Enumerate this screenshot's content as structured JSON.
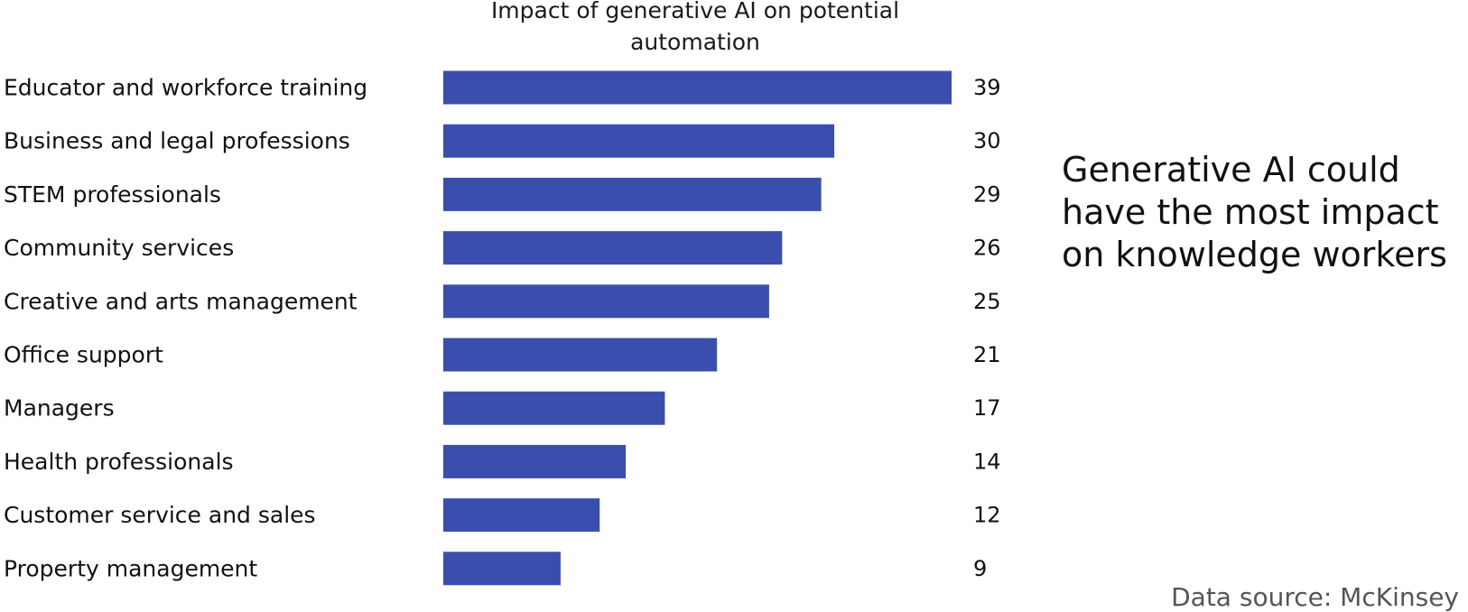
{
  "chart_data": {
    "type": "bar",
    "orientation": "horizontal",
    "title": "Impact of generative AI on potential automation",
    "categories": [
      "Educator and workforce training",
      "Business and legal professions",
      "STEM professionals",
      "Community services",
      "Creative and arts management",
      "Office support",
      "Managers",
      "Health professionals",
      "Customer service and sales",
      "Property management"
    ],
    "values": [
      39,
      30,
      29,
      26,
      25,
      21,
      17,
      14,
      12,
      9
    ],
    "bar_color": "#3a4fad",
    "xlim": [
      0,
      39
    ],
    "grid": false,
    "data_labels": true
  },
  "callout": "Generative AI could have the most impact on knowledge workers",
  "source": "Data source: McKinsey"
}
